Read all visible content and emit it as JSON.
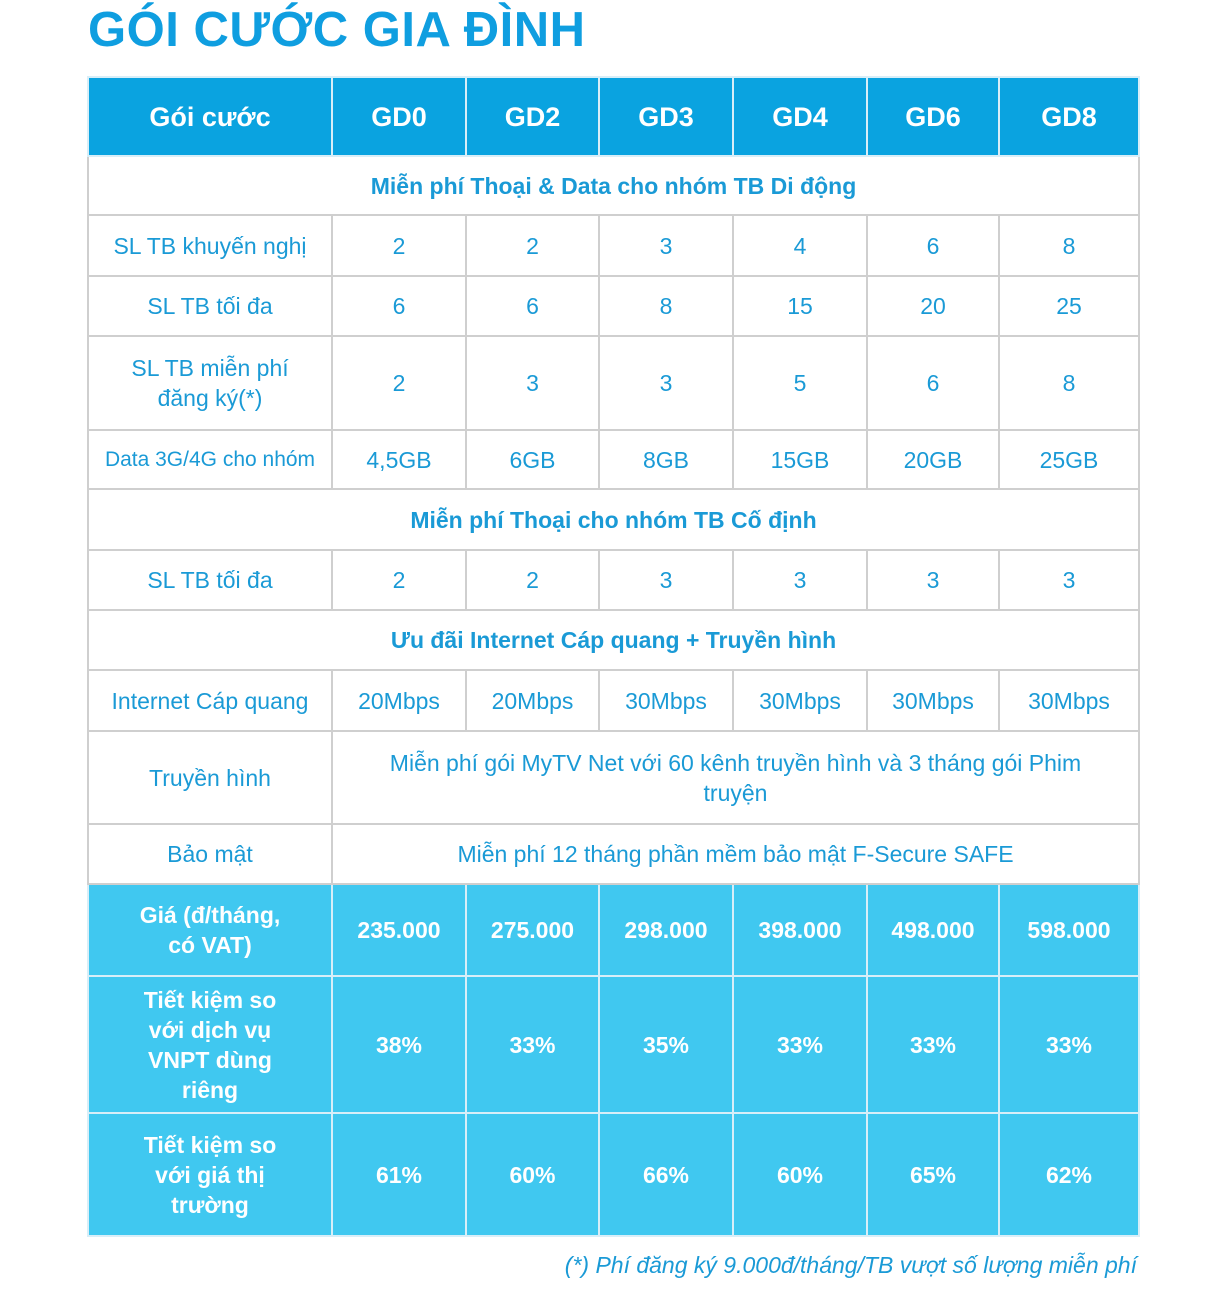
{
  "title": "GÓI CƯỚC GIA ĐÌNH",
  "columns": [
    "Gói cước",
    "GD0",
    "GD2",
    "GD3",
    "GD4",
    "GD6",
    "GD8"
  ],
  "sections": {
    "mobile": "Miễn phí Thoại & Data cho nhóm TB Di động",
    "fixed": "Miễn phí Thoại cho nhóm TB Cố định",
    "internet": "Ưu đãi Internet Cáp quang + Truyền hình"
  },
  "rows": {
    "recommended": {
      "label": "SL TB khuyến nghị",
      "values": [
        "2",
        "2",
        "3",
        "4",
        "6",
        "8"
      ]
    },
    "max_mobile": {
      "label": "SL TB tối đa",
      "values": [
        "6",
        "6",
        "8",
        "15",
        "20",
        "25"
      ]
    },
    "free_reg": {
      "label": "SL TB miễn phí đăng ký(*)",
      "values": [
        "2",
        "3",
        "3",
        "5",
        "6",
        "8"
      ]
    },
    "data": {
      "label": "Data 3G/4G cho nhóm",
      "values": [
        "4,5GB",
        "6GB",
        "8GB",
        "15GB",
        "20GB",
        "25GB"
      ]
    },
    "max_fixed": {
      "label": "SL TB tối đa",
      "values": [
        "2",
        "2",
        "3",
        "3",
        "3",
        "3"
      ]
    },
    "fiber": {
      "label": "Internet Cáp quang",
      "values": [
        "20Mbps",
        "20Mbps",
        "30Mbps",
        "30Mbps",
        "30Mbps",
        "30Mbps"
      ]
    },
    "tv": {
      "label": "Truyền hình",
      "value": "Miễn phí gói MyTV Net với 60 kênh truyền hình và 3 tháng gói Phim truyện"
    },
    "security": {
      "label": "Bảo mật",
      "value": "Miễn phí 12 tháng phần mềm bảo mật F-Secure SAFE"
    },
    "price": {
      "label": "Giá (đ/tháng, có VAT)",
      "values": [
        "235.000",
        "275.000",
        "298.000",
        "398.000",
        "498.000",
        "598.000"
      ]
    },
    "save_vnpt": {
      "label": "Tiết kiệm so với dịch vụ VNPT dùng riêng",
      "values": [
        "38%",
        "33%",
        "35%",
        "33%",
        "33%",
        "33%"
      ]
    },
    "save_market": {
      "label": "Tiết kiệm so với giá thị trường",
      "values": [
        "61%",
        "60%",
        "66%",
        "60%",
        "65%",
        "62%"
      ]
    }
  },
  "footnote": "(*) Phí đăng ký 9.000đ/tháng/TB vượt số lượng miễn phí",
  "colors": {
    "header": "#0aa3e0",
    "highlight": "#40c8f0",
    "text": "#1a9ad6"
  }
}
